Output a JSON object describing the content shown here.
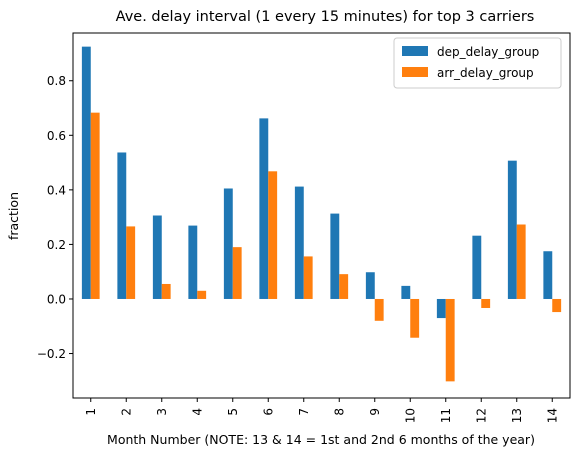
{
  "chart_data": {
    "type": "bar",
    "title": "Ave. delay interval (1 every 15 minutes) for top 3 carriers",
    "xlabel": "Month Number (NOTE: 13 & 14 = 1st and 2nd 6 months of the year)",
    "ylabel": "fraction",
    "categories": [
      "1",
      "2",
      "3",
      "4",
      "5",
      "6",
      "7",
      "8",
      "9",
      "10",
      "11",
      "12",
      "13",
      "14"
    ],
    "series": [
      {
        "name": "dep_delay_group",
        "color": "#1f77b4",
        "values": [
          0.925,
          0.537,
          0.306,
          0.269,
          0.405,
          0.662,
          0.412,
          0.313,
          0.098,
          0.048,
          -0.07,
          0.232,
          0.507,
          0.175
        ]
      },
      {
        "name": "arr_delay_group",
        "color": "#ff7f0e",
        "values": [
          0.683,
          0.266,
          0.055,
          0.03,
          0.19,
          0.468,
          0.156,
          0.091,
          -0.08,
          -0.142,
          -0.302,
          -0.033,
          0.273,
          -0.048
        ]
      }
    ],
    "yticks": [
      -0.2,
      0.0,
      0.2,
      0.4,
      0.6,
      0.8
    ],
    "ytick_labels": [
      "−0.2",
      "0.0",
      "0.2",
      "0.4",
      "0.6",
      "0.8"
    ],
    "ylim": [
      -0.363,
      0.975
    ],
    "legend_position": "top-right",
    "grid": false
  }
}
